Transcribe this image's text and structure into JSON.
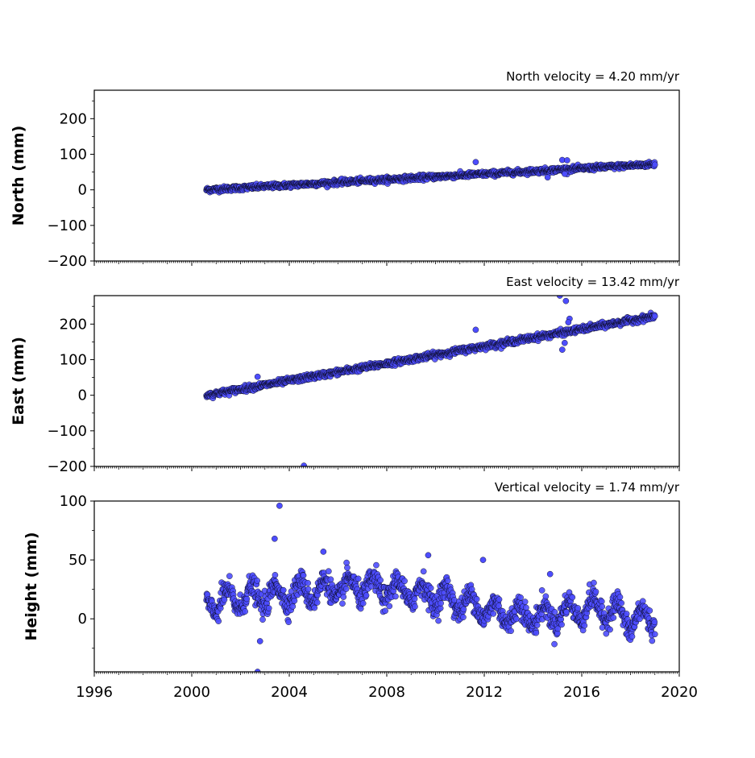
{
  "chart_data": [
    {
      "type": "scatter",
      "title": "North velocity = 4.20 mm/yr",
      "ylabel": "North (mm)",
      "xlabel": "",
      "xlim": [
        1996,
        2020
      ],
      "ylim": [
        -200,
        280
      ],
      "yticks": [
        -200,
        -100,
        0,
        100,
        200
      ],
      "ytick_labels": [
        "−200",
        "−100",
        "0",
        "100",
        "200"
      ],
      "x_tick_labels_shown": false,
      "start": 2000.6,
      "end": 2019.0,
      "trend_start": 0,
      "trend_end": 72,
      "noise": 3.5,
      "outliers": [
        {
          "x": 2011.65,
          "y": 78
        },
        {
          "x": 2014.6,
          "y": 35
        },
        {
          "x": 2015.2,
          "y": 84
        },
        {
          "x": 2015.4,
          "y": 83
        },
        {
          "x": 2015.3,
          "y": 45
        }
      ],
      "marker_color": "#4d4dff",
      "marker_edge": "#000000",
      "grid": false
    },
    {
      "type": "scatter",
      "title": "East velocity = 13.42 mm/yr",
      "ylabel": "East (mm)",
      "xlabel": "",
      "xlim": [
        1996,
        2020
      ],
      "ylim": [
        -200,
        280
      ],
      "yticks": [
        -200,
        -100,
        0,
        100,
        200
      ],
      "ytick_labels": [
        "−200",
        "−100",
        "0",
        "100",
        "200"
      ],
      "x_tick_labels_shown": false,
      "start": 2000.6,
      "end": 2019.0,
      "trend_start": 0,
      "trend_end": 222,
      "noise": 4,
      "outliers": [
        {
          "x": 2004.6,
          "y": -198
        },
        {
          "x": 2002.7,
          "y": 52
        },
        {
          "x": 2011.65,
          "y": 184
        },
        {
          "x": 2015.1,
          "y": 280
        },
        {
          "x": 2015.35,
          "y": 265
        },
        {
          "x": 2015.2,
          "y": 128
        },
        {
          "x": 2015.3,
          "y": 147
        },
        {
          "x": 2015.5,
          "y": 215
        },
        {
          "x": 2015.45,
          "y": 205
        }
      ],
      "marker_color": "#4d4dff",
      "marker_edge": "#000000",
      "grid": false
    },
    {
      "type": "scatter",
      "title": "Vertical velocity = 1.74 mm/yr",
      "ylabel": "Height (mm)",
      "xlabel": "",
      "xlim": [
        1996,
        2020
      ],
      "ylim": [
        -45,
        100
      ],
      "yticks": [
        0,
        50,
        100
      ],
      "ytick_labels": [
        "0",
        "50",
        "100"
      ],
      "xticks": [
        1996,
        2000,
        2004,
        2008,
        2012,
        2016,
        2020
      ],
      "xtick_labels": [
        "1996",
        "2000",
        "2004",
        "2008",
        "2012",
        "2016",
        "2020"
      ],
      "x_tick_labels_shown": true,
      "start": 2000.6,
      "end": 2019.0,
      "mean_profile": [
        [
          2000.6,
          12
        ],
        [
          2002.0,
          18
        ],
        [
          2003.5,
          20
        ],
        [
          2005.0,
          24
        ],
        [
          2007.0,
          27
        ],
        [
          2008.5,
          24
        ],
        [
          2010.0,
          20
        ],
        [
          2011.5,
          12
        ],
        [
          2012.5,
          5
        ],
        [
          2014.5,
          2
        ],
        [
          2016.5,
          10
        ],
        [
          2017.5,
          5
        ],
        [
          2018.0,
          -2
        ],
        [
          2019.0,
          2
        ]
      ],
      "seasonal_amplitude": 9,
      "noise": 5,
      "outliers": [
        {
          "x": 2003.6,
          "y": 96
        },
        {
          "x": 2003.4,
          "y": 68
        },
        {
          "x": 2002.7,
          "y": -45
        },
        {
          "x": 2002.8,
          "y": -19
        },
        {
          "x": 2011.95,
          "y": 50
        },
        {
          "x": 2014.7,
          "y": 38
        },
        {
          "x": 2009.7,
          "y": 54
        },
        {
          "x": 2005.4,
          "y": 57
        }
      ],
      "marker_color": "#4d4dff",
      "marker_edge": "#000000",
      "grid": false
    }
  ]
}
